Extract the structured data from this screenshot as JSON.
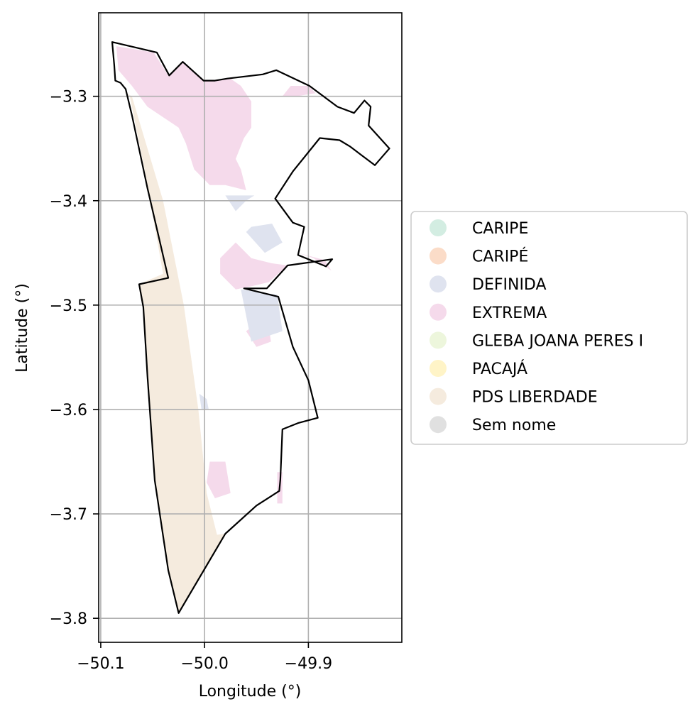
{
  "chart_data": {
    "type": "map",
    "xlabel": "Longitude (°)",
    "ylabel": "Latitude (°)",
    "xlim": [
      -50.102,
      -49.81
    ],
    "ylim": [
      -3.823,
      -3.22
    ],
    "x_ticks": [
      {
        "value": -50.1,
        "label": "−50.1"
      },
      {
        "value": -50.0,
        "label": "−50.0"
      },
      {
        "value": -49.9,
        "label": "−49.9"
      }
    ],
    "y_ticks": [
      {
        "value": -3.3,
        "label": "−3.3"
      },
      {
        "value": -3.4,
        "label": "−3.4"
      },
      {
        "value": -3.5,
        "label": "−3.5"
      },
      {
        "value": -3.6,
        "label": "−3.6"
      },
      {
        "value": -3.7,
        "label": "−3.7"
      },
      {
        "value": -3.8,
        "label": "−3.8"
      }
    ],
    "grid": true,
    "legend_position": "center-right outside",
    "legend": [
      {
        "label": "CARIPE",
        "color": "#d3ede2"
      },
      {
        "label": "CARIPÉ",
        "color": "#fbdcc8"
      },
      {
        "label": "DEFINIDA",
        "color": "#dfe3ef"
      },
      {
        "label": "EXTREMA",
        "color": "#f5daeb"
      },
      {
        "label": "GLEBA JOANA PERES I",
        "color": "#edf6dc"
      },
      {
        "label": "PACAJÁ",
        "color": "#fff4c7"
      },
      {
        "label": "PDS LIBERDADE",
        "color": "#f5ebde"
      },
      {
        "label": "Sem nome",
        "color": "#e0e0e0"
      }
    ],
    "boundary": [
      [
        -50.089,
        -3.248
      ],
      [
        -50.046,
        -3.258
      ],
      [
        -50.034,
        -3.28
      ],
      [
        -50.021,
        -3.267
      ],
      [
        -50.001,
        -3.285
      ],
      [
        -49.99,
        -3.285
      ],
      [
        -49.978,
        -3.283
      ],
      [
        -49.944,
        -3.279
      ],
      [
        -49.931,
        -3.275
      ],
      [
        -49.899,
        -3.29
      ],
      [
        -49.872,
        -3.31
      ],
      [
        -49.856,
        -3.316
      ],
      [
        -49.846,
        -3.304
      ],
      [
        -49.84,
        -3.31
      ],
      [
        -49.842,
        -3.328
      ],
      [
        -49.822,
        -3.35
      ],
      [
        -49.836,
        -3.366
      ],
      [
        -49.86,
        -3.348
      ],
      [
        -49.87,
        -3.342
      ],
      [
        -49.889,
        -3.34
      ],
      [
        -49.915,
        -3.372
      ],
      [
        -49.932,
        -3.398
      ],
      [
        -49.915,
        -3.421
      ],
      [
        -49.904,
        -3.425
      ],
      [
        -49.91,
        -3.452
      ],
      [
        -49.883,
        -3.463
      ],
      [
        -49.877,
        -3.456
      ],
      [
        -49.92,
        -3.462
      ],
      [
        -49.94,
        -3.484
      ],
      [
        -49.962,
        -3.484
      ],
      [
        -49.929,
        -3.492
      ],
      [
        -49.915,
        -3.54
      ],
      [
        -49.9,
        -3.572
      ],
      [
        -49.891,
        -3.608
      ],
      [
        -49.91,
        -3.613
      ],
      [
        -49.925,
        -3.619
      ],
      [
        -49.927,
        -3.667
      ],
      [
        -49.928,
        -3.678
      ],
      [
        -49.95,
        -3.692
      ],
      [
        -49.98,
        -3.719
      ],
      [
        -50.025,
        -3.795
      ],
      [
        -50.035,
        -3.754
      ],
      [
        -50.048,
        -3.668
      ],
      [
        -50.055,
        -3.568
      ],
      [
        -50.059,
        -3.502
      ],
      [
        -50.063,
        -3.48
      ],
      [
        -50.035,
        -3.474
      ],
      [
        -50.055,
        -3.388
      ],
      [
        -50.07,
        -3.318
      ],
      [
        -50.076,
        -3.293
      ],
      [
        -50.081,
        -3.287
      ],
      [
        -50.086,
        -3.285
      ],
      [
        -50.087,
        -3.27
      ]
    ],
    "regions": [
      {
        "name": "PDS LIBERDADE",
        "color": "#f5ebde",
        "polygon": [
          [
            -50.079,
            -3.295
          ],
          [
            -50.072,
            -3.3
          ],
          [
            -50.056,
            -3.38
          ],
          [
            -50.04,
            -3.47
          ],
          [
            -50.063,
            -3.48
          ],
          [
            -50.059,
            -3.502
          ],
          [
            -50.055,
            -3.568
          ],
          [
            -50.048,
            -3.668
          ],
          [
            -50.035,
            -3.754
          ],
          [
            -50.025,
            -3.795
          ],
          [
            -49.98,
            -3.719
          ],
          [
            -49.988,
            -3.72
          ],
          [
            -49.998,
            -3.68
          ],
          [
            -50.006,
            -3.6
          ],
          [
            -50.02,
            -3.5
          ],
          [
            -50.04,
            -3.4
          ],
          [
            -50.07,
            -3.3
          ]
        ]
      },
      {
        "name": "EXTREMA",
        "color": "#f5daeb",
        "polygon": [
          [
            -50.085,
            -3.252
          ],
          [
            -50.049,
            -3.258
          ],
          [
            -50.035,
            -3.28
          ],
          [
            -50.021,
            -3.268
          ],
          [
            -50.0,
            -3.285
          ],
          [
            -49.975,
            -3.283
          ],
          [
            -49.965,
            -3.29
          ],
          [
            -49.955,
            -3.305
          ],
          [
            -49.955,
            -3.33
          ],
          [
            -49.962,
            -3.34
          ],
          [
            -49.97,
            -3.36
          ],
          [
            -49.965,
            -3.37
          ],
          [
            -49.96,
            -3.39
          ],
          [
            -49.98,
            -3.385
          ],
          [
            -49.995,
            -3.385
          ],
          [
            -50.01,
            -3.37
          ],
          [
            -50.018,
            -3.345
          ],
          [
            -50.025,
            -3.33
          ],
          [
            -50.04,
            -3.32
          ],
          [
            -50.055,
            -3.31
          ],
          [
            -50.07,
            -3.29
          ],
          [
            -50.083,
            -3.275
          ]
        ]
      },
      {
        "name": "EXTREMA",
        "color": "#f5daeb",
        "polygon": [
          [
            -49.917,
            -3.29
          ],
          [
            -49.9,
            -3.29
          ],
          [
            -49.893,
            -3.297
          ],
          [
            -49.912,
            -3.3
          ],
          [
            -49.925,
            -3.3
          ]
        ]
      },
      {
        "name": "EXTREMA",
        "color": "#f5daeb",
        "polygon": [
          [
            -49.985,
            -3.455
          ],
          [
            -49.97,
            -3.44
          ],
          [
            -49.955,
            -3.455
          ],
          [
            -49.935,
            -3.46
          ],
          [
            -49.92,
            -3.462
          ],
          [
            -49.938,
            -3.478
          ],
          [
            -49.955,
            -3.482
          ],
          [
            -49.97,
            -3.485
          ],
          [
            -49.985,
            -3.47
          ]
        ]
      },
      {
        "name": "EXTREMA",
        "color": "#f5daeb",
        "polygon": [
          [
            -49.94,
            -3.51
          ],
          [
            -49.936,
            -3.535
          ],
          [
            -49.95,
            -3.54
          ],
          [
            -49.96,
            -3.525
          ]
        ]
      },
      {
        "name": "EXTREMA",
        "color": "#f5daeb",
        "polygon": [
          [
            -49.91,
            -3.45
          ],
          [
            -49.895,
            -3.455
          ],
          [
            -49.878,
            -3.467
          ],
          [
            -49.884,
            -3.457
          ]
        ]
      },
      {
        "name": "EXTREMA",
        "color": "#f5daeb",
        "polygon": [
          [
            -49.995,
            -3.65
          ],
          [
            -49.98,
            -3.65
          ],
          [
            -49.975,
            -3.68
          ],
          [
            -49.99,
            -3.685
          ],
          [
            -49.998,
            -3.67
          ]
        ]
      },
      {
        "name": "EXTREMA",
        "color": "#f5daeb",
        "polygon": [
          [
            -49.93,
            -3.66
          ],
          [
            -49.925,
            -3.66
          ],
          [
            -49.925,
            -3.69
          ],
          [
            -49.93,
            -3.69
          ]
        ]
      },
      {
        "name": "DEFINIDA",
        "color": "#dfe3ef",
        "polygon": [
          [
            -49.98,
            -3.395
          ],
          [
            -49.97,
            -3.41
          ],
          [
            -49.96,
            -3.4
          ],
          [
            -49.952,
            -3.395
          ]
        ]
      },
      {
        "name": "DEFINIDA",
        "color": "#dfe3ef",
        "polygon": [
          [
            -49.96,
            -3.43
          ],
          [
            -49.942,
            -3.45
          ],
          [
            -49.925,
            -3.44
          ],
          [
            -49.935,
            -3.422
          ],
          [
            -49.955,
            -3.425
          ]
        ]
      },
      {
        "name": "DEFINIDA",
        "color": "#dfe3ef",
        "polygon": [
          [
            -49.965,
            -3.485
          ],
          [
            -49.962,
            -3.5
          ],
          [
            -49.955,
            -3.535
          ],
          [
            -49.94,
            -3.53
          ],
          [
            -49.925,
            -3.525
          ],
          [
            -49.93,
            -3.49
          ]
        ]
      },
      {
        "name": "DEFINIDA",
        "color": "#dfe3ef",
        "polygon": [
          [
            -50.005,
            -3.585
          ],
          [
            -49.998,
            -3.59
          ],
          [
            -49.996,
            -3.6
          ],
          [
            -50.003,
            -3.6
          ]
        ]
      }
    ]
  }
}
